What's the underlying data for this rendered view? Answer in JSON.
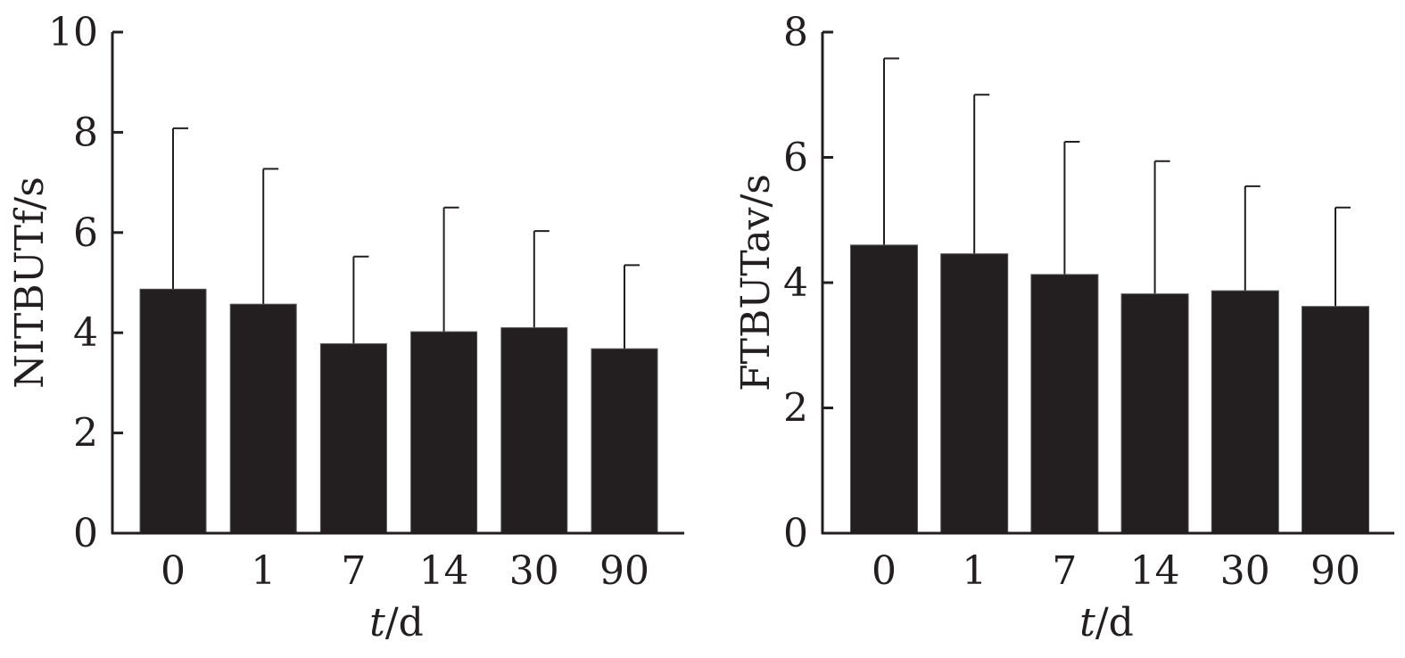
{
  "chart_data": [
    {
      "type": "bar",
      "categories": [
        "0",
        "1",
        "7",
        "14",
        "30",
        "90"
      ],
      "values": [
        4.87,
        4.57,
        3.78,
        4.02,
        4.1,
        3.68
      ],
      "error_upper": [
        8.08,
        7.27,
        5.52,
        6.5,
        6.03,
        5.35
      ],
      "xlabel_italic": "t",
      "xlabel_rest": "/d",
      "ylabel": "NITBUTf/s",
      "ylim": [
        0,
        10
      ],
      "yticks": [
        "0",
        "2",
        "4",
        "6",
        "8",
        "10"
      ],
      "bar_color": "#231f20"
    },
    {
      "type": "bar",
      "categories": [
        "0",
        "1",
        "7",
        "14",
        "30",
        "90"
      ],
      "values": [
        4.6,
        4.46,
        4.13,
        3.82,
        3.87,
        3.62
      ],
      "error_upper": [
        7.58,
        7.0,
        6.25,
        5.94,
        5.54,
        5.2
      ],
      "xlabel_italic": "t",
      "xlabel_rest": "/d",
      "ylabel": "FTBUTav/s",
      "ylim": [
        0,
        8
      ],
      "yticks": [
        "0",
        "2",
        "4",
        "6",
        "8"
      ],
      "bar_color": "#231f20"
    }
  ]
}
